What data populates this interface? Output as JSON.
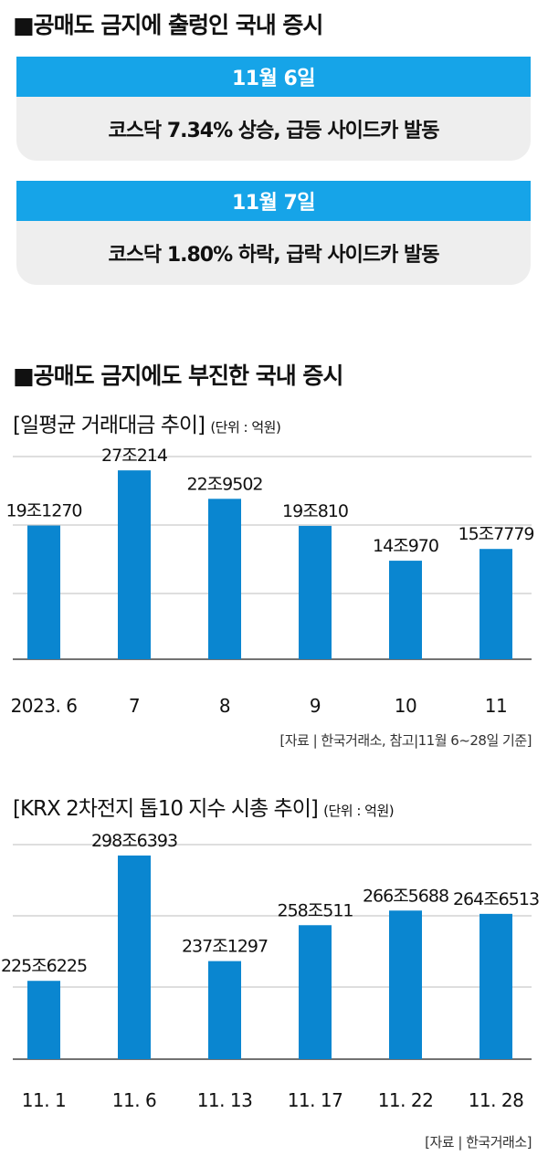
{
  "section1": {
    "heading": "■공매도 금지에 출렁인 국내 증시",
    "events": [
      {
        "date": "11월 6일",
        "text": "코스닥 7.34% 상승, 급등 사이드카 발동"
      },
      {
        "date": "11월 7일",
        "text": "코스닥 1.80% 하락, 급락 사이드카 발동"
      }
    ]
  },
  "section2": {
    "heading": "■공매도 금지에도 부진한 국내 증시"
  },
  "chart1": {
    "subtitle": "[일평균 거래대금 추이]",
    "unit": "(단위 : 억원)",
    "source": "[자료 | 한국거래소, 참고|11월 6~28일 기준]"
  },
  "chart2": {
    "subtitle": "[KRX 2차전지 톱10 지수 시총 추이]",
    "unit": "(단위 : 억원)",
    "source": "[자료 | 한국거래소]"
  },
  "colors": {
    "bar": "#0a86d0",
    "grid": "#bdbdbd",
    "axis": "#444444"
  },
  "chart_data": [
    {
      "type": "bar",
      "title": "[일평균 거래대금 추이]",
      "categories": [
        "2023. 6",
        "7",
        "8",
        "9",
        "10",
        "11"
      ],
      "values": [
        191270,
        270214,
        229502,
        190810,
        140970,
        157779
      ],
      "data_labels": [
        "19조1270",
        "27조214",
        "22조9502",
        "19조810",
        "14조970",
        "15조7779"
      ],
      "ylim": [
        0,
        290000
      ],
      "grid": true
    },
    {
      "type": "bar",
      "title": "[KRX 2차전지 톱10 지수 시총 추이]",
      "categories": [
        "11. 1",
        "11. 6",
        "11. 13",
        "11. 17",
        "11. 22",
        "11. 28"
      ],
      "values": [
        2256225,
        2986393,
        2371297,
        2580511,
        2665688,
        2646513
      ],
      "data_labels": [
        "225조6225",
        "298조6393",
        "237조1297",
        "258조511",
        "266조5688",
        "264조6513"
      ],
      "ylim": [
        1800000,
        3050000
      ],
      "grid": true
    }
  ]
}
